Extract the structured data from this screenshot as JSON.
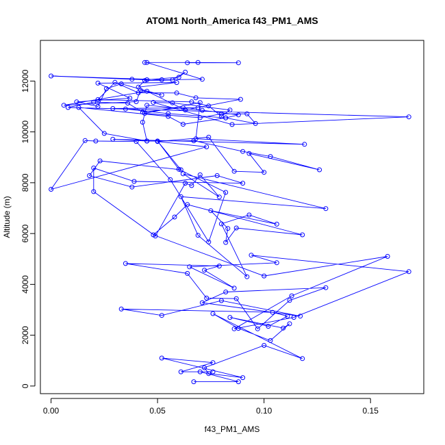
{
  "chart_data": {
    "type": "line",
    "title": "ATOM1 North_America f43_PM1_AMS",
    "xlabel": "f43_PM1_AMS",
    "ylabel": "Altitude (m)",
    "xlim": [
      -0.005,
      0.175
    ],
    "ylim": [
      -300,
      13600
    ],
    "x_ticks": [
      0.0,
      0.05,
      0.1,
      0.15
    ],
    "x_tick_labels": [
      "0.00",
      "0.05",
      "0.10",
      "0.15"
    ],
    "y_ticks": [
      0,
      2000,
      4000,
      6000,
      8000,
      10000,
      12000
    ],
    "y_tick_labels": [
      "0",
      "2000",
      "4000",
      "6000",
      "8000",
      "10000",
      "12000"
    ],
    "grid": false,
    "series_color": "#0000ff",
    "markers": "open-circle",
    "series": [
      {
        "x": [
          0.067,
          0.088,
          0.07,
          0.076,
          0.061,
          0.076,
          0.052,
          0.09,
          0.074,
          0.072,
          0.1,
          0.118,
          0.076,
          0.088,
          0.103,
          0.112,
          0.109,
          0.084,
          0.102,
          0.111,
          0.104,
          0.033,
          0.052,
          0.08,
          0.117,
          0.071,
          0.082,
          0.129,
          0.112,
          0.097,
          0.087,
          0.073,
          0.064,
          0.035,
          0.079,
          0.072,
          0.086,
          0.065,
          0.106,
          0.094,
          0.168,
          0.114,
          0.086,
          0.113,
          0.158,
          0.1,
          0.048,
          0.058,
          0.064,
          0.118,
          0.087,
          0.082,
          0.083,
          0.075,
          0.106,
          0.093,
          0.08,
          0.092,
          0.069,
          0.061,
          0.129,
          0.062,
          0.079,
          0.07,
          0.066,
          0.063,
          0.049,
          0.02,
          0.02,
          0.039,
          0.09,
          0.078,
          0.038,
          0.018,
          0.023,
          0.061,
          0.05,
          0.06,
          0.082,
          0.074,
          0.056,
          0.04,
          0.021,
          0.016,
          0.0,
          0.073,
          0.05,
          0.074,
          0.086,
          0.1,
          0.093,
          0.126,
          0.103,
          0.09,
          0.067,
          0.045,
          0.029,
          0.119,
          0.068,
          0.07,
          0.044,
          0.07,
          0.08,
          0.092,
          0.096,
          0.082,
          0.062,
          0.055,
          0.013,
          0.025,
          0.045,
          0.043,
          0.045,
          0.071,
          0.088,
          0.082,
          0.055,
          0.035,
          0.029,
          0.069,
          0.062,
          0.043,
          0.036,
          0.02,
          0.008,
          0.168,
          0.085,
          0.048,
          0.057,
          0.084,
          0.08,
          0.074,
          0.066,
          0.022,
          0.03,
          0.041,
          0.059,
          0.068,
          0.089,
          0.063,
          0.045,
          0.006,
          0.04,
          0.042,
          0.052,
          0.033,
          0.026,
          0.022,
          0.012,
          0.037,
          0.022,
          0.059,
          0.041,
          0.044,
          0.057,
          0.063,
          0.06,
          0.045,
          0.038,
          0.0,
          0.052,
          0.071,
          0.045,
          0.044,
          0.069,
          0.088,
          0.064
        ],
        "y": [
          170,
          170,
          560,
          560,
          560,
          920,
          1100,
          330,
          490,
          720,
          1600,
          1080,
          2850,
          2270,
          1790,
          2450,
          2280,
          2700,
          2350,
          2750,
          2900,
          3030,
          2780,
          3360,
          2750,
          3280,
          3700,
          3870,
          3370,
          2250,
          3440,
          3460,
          4430,
          4820,
          4720,
          4560,
          3850,
          4690,
          4850,
          5150,
          4500,
          2700,
          2250,
          3550,
          5100,
          4330,
          5950,
          6650,
          7140,
          5950,
          6220,
          5650,
          6200,
          6900,
          6370,
          6730,
          6380,
          4300,
          5930,
          7450,
          6980,
          8350,
          7440,
          8310,
          7890,
          7980,
          5900,
          7650,
          8580,
          8050,
          7980,
          8280,
          7830,
          8280,
          8860,
          8510,
          9640,
          8530,
          7620,
          5670,
          8120,
          9620,
          9640,
          9660,
          7740,
          9410,
          9620,
          9790,
          8450,
          8410,
          9150,
          8510,
          9030,
          9230,
          9650,
          9640,
          9710,
          9510,
          9730,
          11150,
          10730,
          10560,
          10710,
          10710,
          10330,
          10550,
          10300,
          10610,
          10960,
          9940,
          9640,
          10380,
          11050,
          10850,
          10670,
          10550,
          10720,
          10900,
          10920,
          10950,
          10950,
          10780,
          11130,
          11170,
          10960,
          10590,
          10290,
          11160,
          11140,
          10860,
          10610,
          11020,
          11180,
          11270,
          11950,
          11540,
          11530,
          11340,
          11280,
          10860,
          11600,
          11050,
          11190,
          11640,
          11450,
          11890,
          11700,
          11000,
          11180,
          11330,
          11920,
          11940,
          11760,
          12020,
          12040,
          12350,
          12150,
          12050,
          12070,
          12200,
          12050,
          12070,
          12730,
          12730,
          12730,
          12720,
          12720
        ]
      }
    ]
  }
}
